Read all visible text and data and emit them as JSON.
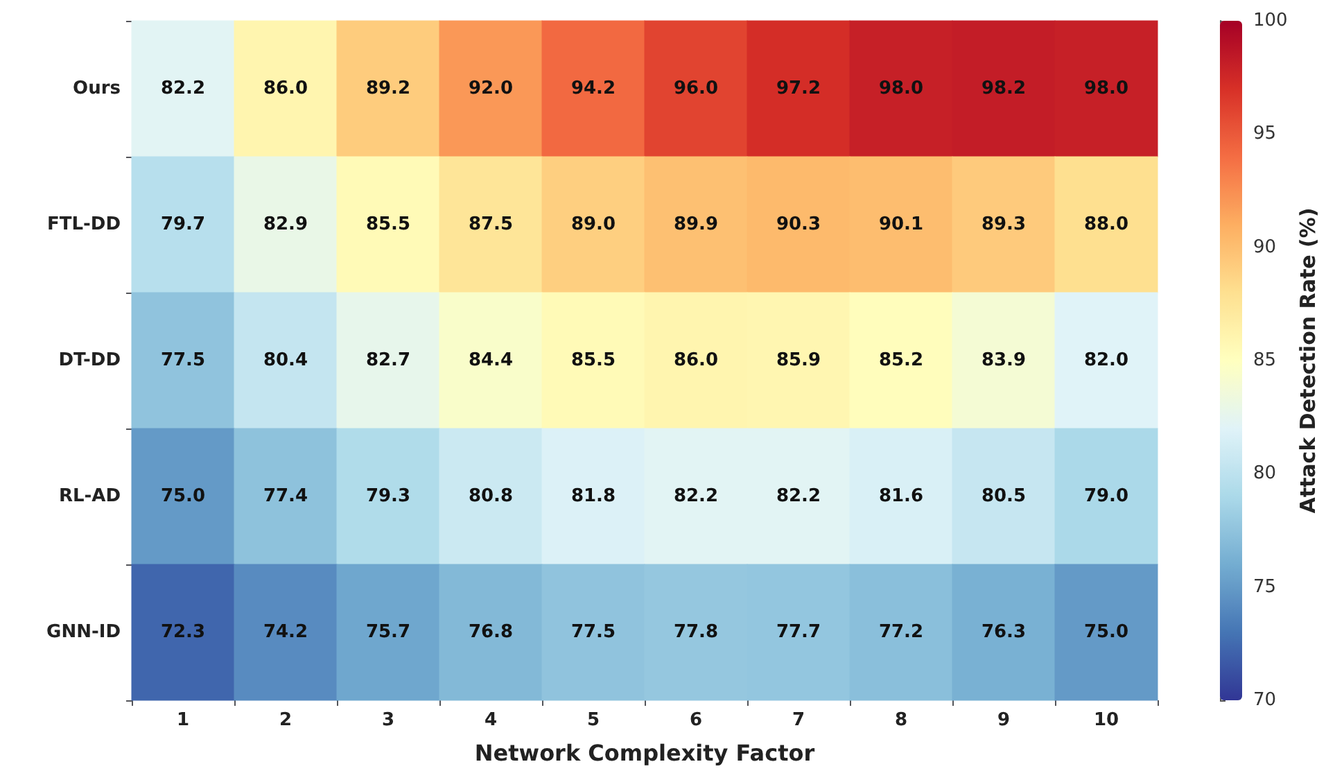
{
  "chart_data": {
    "type": "heatmap",
    "xlabel": "Network Complexity Factor",
    "clabel": "Attack Detection Rate (%)",
    "categories": [
      "1",
      "2",
      "3",
      "4",
      "5",
      "6",
      "7",
      "8",
      "9",
      "10"
    ],
    "y_categories": [
      "Ours",
      "FTL-DD",
      "DT-DD",
      "RL-AD",
      "GNN-ID"
    ],
    "cells": [
      [
        82.2,
        86.0,
        89.2,
        92.0,
        94.2,
        96.0,
        97.2,
        98.0,
        98.2,
        98.0
      ],
      [
        79.7,
        82.9,
        85.5,
        87.5,
        89.0,
        89.9,
        90.3,
        90.1,
        89.3,
        88.0
      ],
      [
        77.5,
        80.4,
        82.7,
        84.4,
        85.5,
        86.0,
        85.9,
        85.2,
        83.9,
        82.0
      ],
      [
        75.0,
        77.4,
        79.3,
        80.8,
        81.8,
        82.2,
        82.2,
        81.6,
        80.5,
        79.0
      ],
      [
        72.3,
        74.2,
        75.7,
        76.8,
        77.5,
        77.8,
        77.7,
        77.2,
        76.3,
        75.0
      ]
    ],
    "cell_labels": [
      [
        "82.2",
        "86.0",
        "89.2",
        "92.0",
        "94.2",
        "96.0",
        "97.2",
        "98.0",
        "98.2",
        "98.0"
      ],
      [
        "79.7",
        "82.9",
        "85.5",
        "87.5",
        "89.0",
        "89.9",
        "90.3",
        "90.1",
        "89.3",
        "88.0"
      ],
      [
        "77.5",
        "80.4",
        "82.7",
        "84.4",
        "85.5",
        "86.0",
        "85.9",
        "85.2",
        "83.9",
        "82.0"
      ],
      [
        "75.0",
        "77.4",
        "79.3",
        "80.8",
        "81.8",
        "82.2",
        "82.2",
        "81.6",
        "80.5",
        "79.0"
      ],
      [
        "72.3",
        "74.2",
        "75.7",
        "76.8",
        "77.5",
        "77.8",
        "77.7",
        "77.2",
        "76.3",
        "75.0"
      ]
    ],
    "clim": [
      70,
      100
    ],
    "cticks": [
      70,
      75,
      80,
      85,
      90,
      95,
      100
    ],
    "data_labels": true
  }
}
